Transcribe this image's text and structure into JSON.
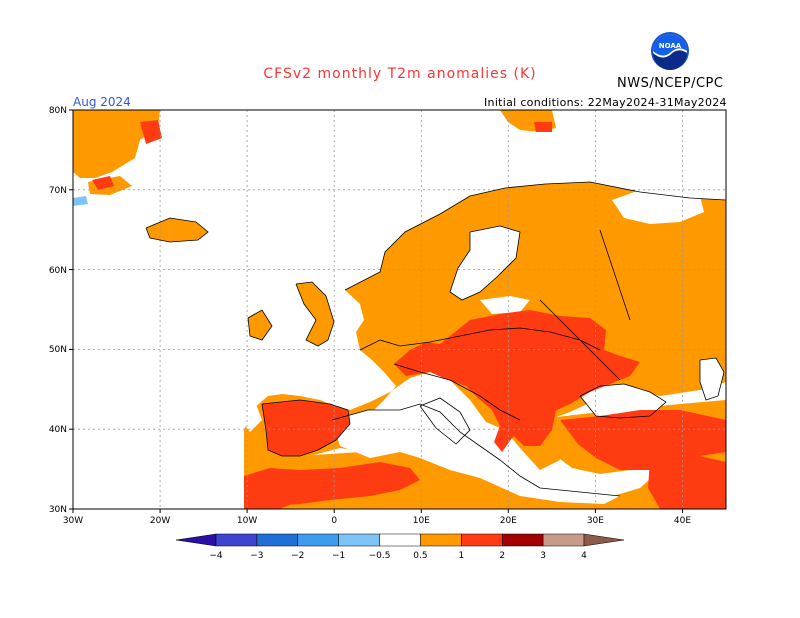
{
  "header": {
    "title": "CFSv2 monthly T2m anomalies (K)",
    "title_color": "#ff3333",
    "agency": "NWS/NCEP/CPC",
    "month": "Aug 2024",
    "initial_conditions": "Initial conditions: 22May2024-31May2024"
  },
  "logo": {
    "text": "NOAA",
    "icon": "noaa-logo-icon"
  },
  "map": {
    "region": "Europe",
    "lon_range": [
      -30,
      45
    ],
    "lat_range": [
      30,
      80
    ],
    "lat_labels": [
      "80N",
      "70N",
      "60N",
      "50N",
      "40N",
      "30N"
    ],
    "lon_labels": [
      "30W",
      "20W",
      "10W",
      "0",
      "10E",
      "20E",
      "30E",
      "40E"
    ],
    "grid": true
  },
  "colorbar": {
    "labels": [
      "−4",
      "−3",
      "−2",
      "−1",
      "−0.5",
      "0.5",
      "1",
      "2",
      "3",
      "4"
    ],
    "colors": [
      "#2b0fa8",
      "#3e44d0",
      "#1f6fd6",
      "#3d9bf0",
      "#7ec3f7",
      "#ffffff",
      "#ff9900",
      "#ff3b12",
      "#a30000",
      "#c89a8a",
      "#8b5a48"
    ]
  }
}
